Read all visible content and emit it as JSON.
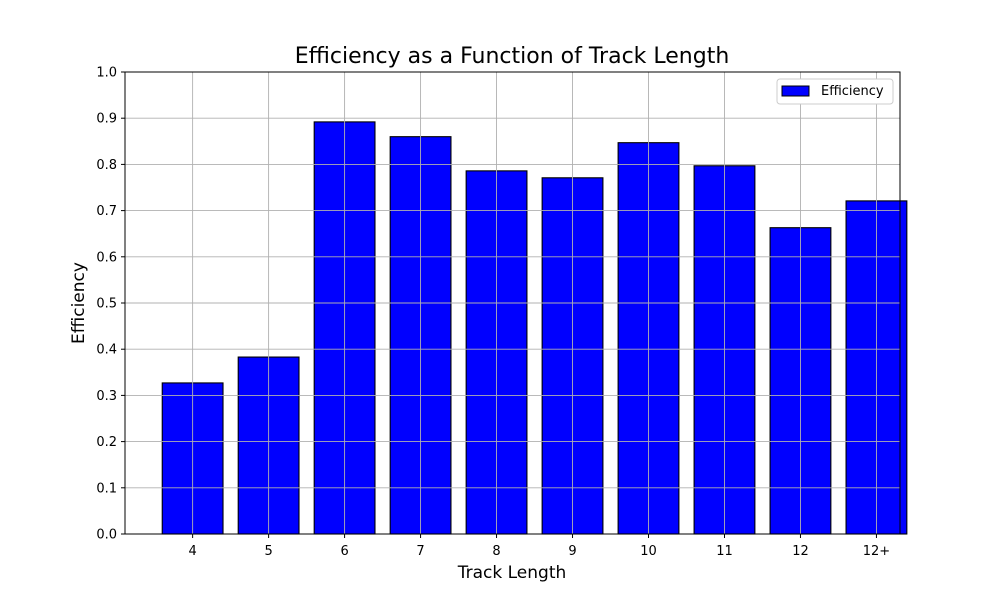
{
  "chart_data": {
    "type": "bar",
    "title": "Efficiency as a Function of Track Length",
    "xlabel": "Track Length",
    "ylabel": "Efficiency",
    "categories": [
      "4",
      "5",
      "6",
      "7",
      "8",
      "9",
      "10",
      "11",
      "12",
      "12+"
    ],
    "series": [
      {
        "name": "Efficiency",
        "values": [
          0.327,
          0.383,
          0.892,
          0.86,
          0.786,
          0.771,
          0.847,
          0.797,
          0.663,
          0.721
        ],
        "color": "#0000ff"
      }
    ],
    "ylim": [
      0,
      1.0
    ],
    "yticks": [
      "0.0",
      "0.1",
      "0.2",
      "0.3",
      "0.4",
      "0.5",
      "0.6",
      "0.7",
      "0.8",
      "0.9",
      "1.0"
    ],
    "grid": true,
    "legend_position": "top-right"
  }
}
